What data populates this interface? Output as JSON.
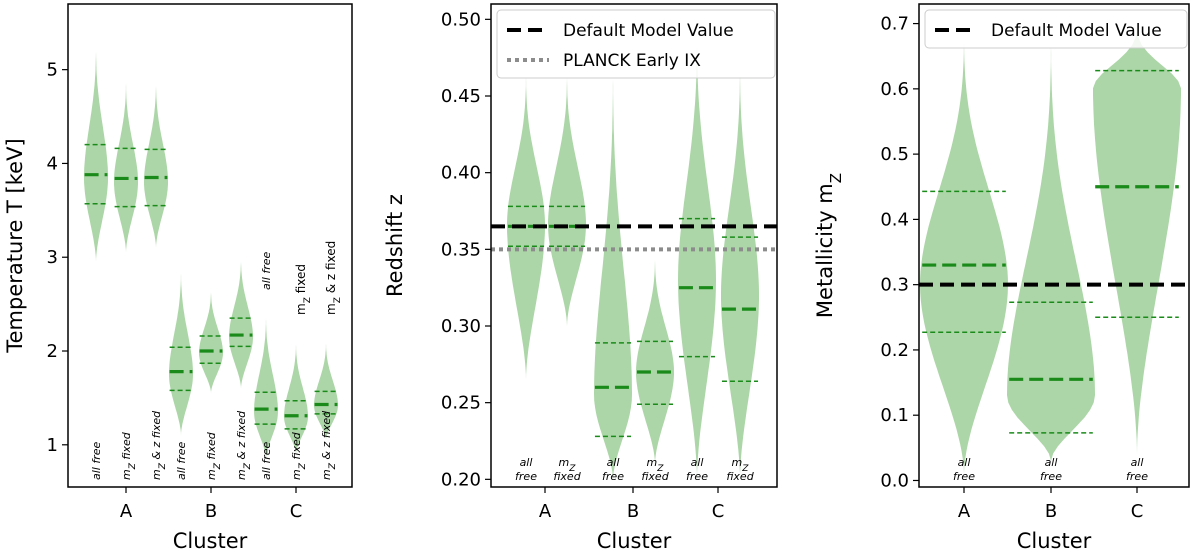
{
  "colors": {
    "violin_fill": "#9dcf98",
    "median": "#1a8a1a",
    "quartile": "#1a8a1a",
    "default_line": "#000000",
    "planck_line": "#8c8c8c"
  },
  "chart_data": [
    {
      "type": "violin",
      "xlabel": "Cluster",
      "ylabel": "Temperature T [keV]",
      "ylim": [
        0.55,
        5.7
      ],
      "yticks": [
        1,
        2,
        3,
        4,
        5
      ],
      "ytick_labels": [
        "1",
        "2",
        "3",
        "4",
        "5"
      ],
      "categories": [
        "A",
        "B",
        "C"
      ],
      "violins": [
        {
          "cluster": "A",
          "label": "all free",
          "median": 3.88,
          "q1": 3.57,
          "q3": 4.2,
          "min": 2.95,
          "max": 5.35,
          "halfwidth": 0.12,
          "peak": 3.85
        },
        {
          "cluster": "A",
          "label": "mZ fixed",
          "median": 3.84,
          "q1": 3.54,
          "q3": 4.16,
          "min": 3.05,
          "max": 4.95,
          "halfwidth": 0.12,
          "peak": 3.8
        },
        {
          "cluster": "A",
          "label": "mZ & z fixed",
          "median": 3.85,
          "q1": 3.55,
          "q3": 4.15,
          "min": 3.1,
          "max": 4.95,
          "halfwidth": 0.12,
          "peak": 3.8
        },
        {
          "cluster": "B",
          "label": "all free",
          "median": 1.78,
          "q1": 1.58,
          "q3": 2.04,
          "min": 1.1,
          "max": 2.95,
          "halfwidth": 0.12,
          "peak": 1.75
        },
        {
          "cluster": "B",
          "label": "mZ fixed",
          "median": 2.0,
          "q1": 1.87,
          "q3": 2.16,
          "min": 1.55,
          "max": 2.7,
          "halfwidth": 0.12,
          "peak": 1.98
        },
        {
          "cluster": "B",
          "label": "mZ & z fixed",
          "median": 2.17,
          "q1": 2.05,
          "q3": 2.35,
          "min": 1.6,
          "max": 3.05,
          "halfwidth": 0.12,
          "peak": 2.15
        },
        {
          "cluster": "C",
          "label": "all free",
          "median": 1.38,
          "q1": 1.22,
          "q3": 1.56,
          "min": 0.85,
          "max": 2.45,
          "halfwidth": 0.12,
          "peak": 1.35
        },
        {
          "cluster": "C",
          "label": "mZ fixed",
          "median": 1.31,
          "q1": 1.17,
          "q3": 1.47,
          "min": 0.9,
          "max": 2.15,
          "halfwidth": 0.12,
          "peak": 1.3
        },
        {
          "cluster": "C",
          "label": "mZ & z fixed",
          "median": 1.43,
          "q1": 1.33,
          "q3": 1.57,
          "min": 1.05,
          "max": 2.15,
          "halfwidth": 0.12,
          "peak": 1.42
        }
      ]
    },
    {
      "type": "violin",
      "xlabel": "Cluster",
      "ylabel": "Redshift z",
      "ylim": [
        0.195,
        0.51
      ],
      "yticks": [
        0.2,
        0.25,
        0.3,
        0.35,
        0.4,
        0.45,
        0.5
      ],
      "ytick_labels": [
        "0.20",
        "0.25",
        "0.30",
        "0.35",
        "0.40",
        "0.45",
        "0.50"
      ],
      "categories": [
        "A",
        "B",
        "C"
      ],
      "legend": [
        {
          "label": "Default Model Value",
          "style": "dashed",
          "value": 0.365
        },
        {
          "label": "PLANCK Early IX",
          "style": "dotted",
          "value": 0.35
        }
      ],
      "violins": [
        {
          "cluster": "A",
          "label": "all free",
          "median": 0.365,
          "q1": 0.352,
          "q3": 0.378,
          "min": 0.265,
          "max": 0.47,
          "halfwidth": 0.18,
          "peak": 0.366
        },
        {
          "cluster": "A",
          "label": "mZ fixed",
          "median": 0.365,
          "q1": 0.352,
          "q3": 0.378,
          "min": 0.3,
          "max": 0.47,
          "halfwidth": 0.18,
          "peak": 0.366
        },
        {
          "cluster": "B",
          "label": "all free",
          "median": 0.26,
          "q1": 0.228,
          "q3": 0.289,
          "min": 0.2,
          "max": 0.48,
          "halfwidth": 0.18,
          "peak": 0.255
        },
        {
          "cluster": "B",
          "label": "mZ fixed",
          "median": 0.27,
          "q1": 0.249,
          "q3": 0.29,
          "min": 0.21,
          "max": 0.35,
          "halfwidth": 0.18,
          "peak": 0.27
        },
        {
          "cluster": "C",
          "label": "all free",
          "median": 0.325,
          "q1": 0.28,
          "q3": 0.37,
          "min": 0.2,
          "max": 0.5,
          "halfwidth": 0.18,
          "peak": 0.33
        },
        {
          "cluster": "C",
          "label": "mZ fixed",
          "median": 0.311,
          "q1": 0.264,
          "q3": 0.358,
          "min": 0.2,
          "max": 0.48,
          "halfwidth": 0.18,
          "peak": 0.32
        }
      ],
      "reference_lines": [
        {
          "name": "Default Model Value",
          "value": 0.365,
          "style": "dashed"
        },
        {
          "name": "PLANCK Early IX",
          "value": 0.35,
          "style": "dotted"
        }
      ]
    },
    {
      "type": "violin",
      "xlabel": "Cluster",
      "ylabel": "Metallicity mZ",
      "ylim": [
        -0.01,
        0.73
      ],
      "yticks": [
        0.0,
        0.1,
        0.2,
        0.3,
        0.4,
        0.5,
        0.6,
        0.7
      ],
      "ytick_labels": [
        "0.0",
        "0.1",
        "0.2",
        "0.3",
        "0.4",
        "0.5",
        "0.6",
        "0.7"
      ],
      "categories": [
        "A",
        "B",
        "C"
      ],
      "legend": [
        {
          "label": "Default Model Value",
          "style": "dashed",
          "value": 0.3
        }
      ],
      "violins": [
        {
          "cluster": "A",
          "label": "all free",
          "median": 0.33,
          "q1": 0.227,
          "q3": 0.443,
          "min": 0.01,
          "max": 0.7,
          "halfwidth": 0.4,
          "peak": 0.3
        },
        {
          "cluster": "B",
          "label": "all free",
          "median": 0.155,
          "q1": 0.073,
          "q3": 0.273,
          "min": 0.03,
          "max": 0.7,
          "halfwidth": 0.4,
          "peak": 0.13
        },
        {
          "cluster": "C",
          "label": "all free",
          "median": 0.45,
          "q1": 0.25,
          "q3": 0.628,
          "min": 0.04,
          "max": 0.7,
          "halfwidth": 0.4,
          "peak": 0.6
        }
      ],
      "reference_lines": [
        {
          "name": "Default Model Value",
          "value": 0.3,
          "style": "dashed"
        }
      ]
    }
  ]
}
